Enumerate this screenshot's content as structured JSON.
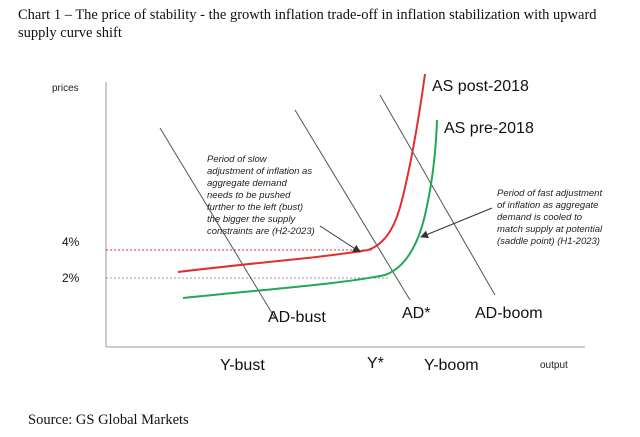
{
  "title": "Chart 1 – The price of stability - the growth inflation trade-off in inflation stabilization with upward supply curve shift",
  "source": "Source: GS Global Markets",
  "axes": {
    "y_label": "prices",
    "x_label": "output",
    "y_ticks": [
      "4%",
      "2%"
    ],
    "x_ticks": [
      "Y-bust",
      "Y*",
      "Y-boom"
    ]
  },
  "curves": {
    "as_post": {
      "label": "AS post-2018",
      "color": "#e03030"
    },
    "as_pre": {
      "label": "AS pre-2018",
      "color": "#22a852"
    },
    "ad_bust": {
      "label": "AD-bust",
      "color": "#555555"
    },
    "ad_star": {
      "label": "AD*",
      "color": "#555555"
    },
    "ad_boom": {
      "label": "AD-boom",
      "color": "#555555"
    }
  },
  "annotations": {
    "left": [
      "Period of slow",
      "adjustment of inflation as",
      "aggregate demand",
      "needs to be pushed",
      "further to the left (bust)",
      "the bigger the supply",
      "constraints are (H2-2023)"
    ],
    "right": [
      "Period of fast adjustment",
      "of inflation as aggregate",
      "demand is cooled to",
      "match supply at potential",
      "(saddle point) (H1-2023)"
    ]
  }
}
